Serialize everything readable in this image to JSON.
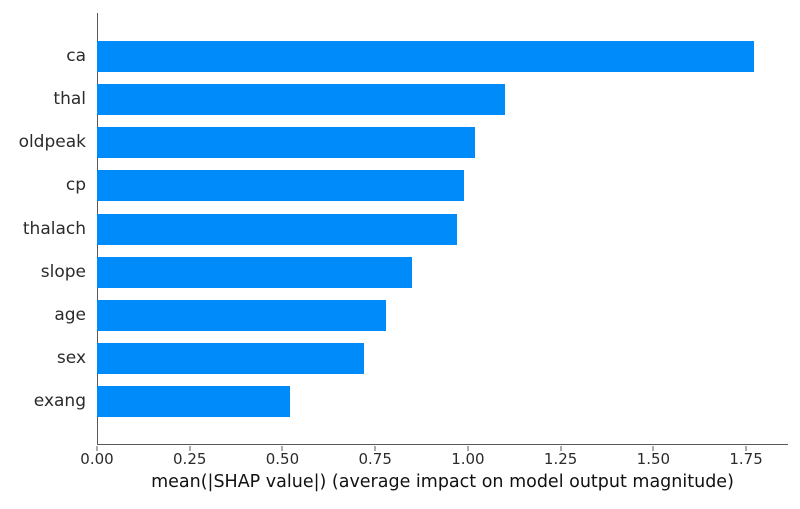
{
  "chart_data": {
    "type": "bar",
    "orientation": "horizontal",
    "title": "",
    "categories": [
      "ca",
      "thal",
      "oldpeak",
      "cp",
      "thalach",
      "slope",
      "age",
      "sex",
      "exang"
    ],
    "values": [
      1.77,
      1.1,
      1.02,
      0.99,
      0.97,
      0.85,
      0.78,
      0.72,
      0.52
    ],
    "xlabel": "mean(|SHAP value|) (average impact on model output magnitude)",
    "ylabel": "",
    "xlim": [
      0,
      1.863
    ],
    "xticks": [
      0.0,
      0.25,
      0.5,
      0.75,
      1.0,
      1.25,
      1.5,
      1.75
    ],
    "xtick_labels": [
      "0.00",
      "0.25",
      "0.50",
      "0.75",
      "1.00",
      "1.25",
      "1.50",
      "1.75"
    ],
    "bar_color": "#008bfb",
    "spine_color": "#595959",
    "grid": false,
    "legend": null
  }
}
